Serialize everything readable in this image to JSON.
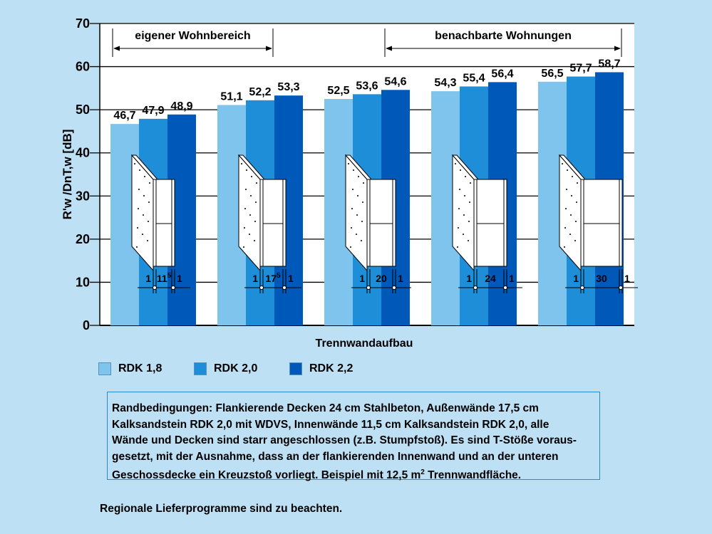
{
  "chart_data": {
    "type": "bar",
    "title": "",
    "xlabel": "Trennwandaufbau",
    "ylabel_main": "R'w /DnT,w",
    "ylabel_unit": "[dB]",
    "ylim": [
      0,
      70
    ],
    "yticks": [
      "0",
      "10",
      "20",
      "30",
      "40",
      "50",
      "60",
      "70"
    ],
    "grid": true,
    "categories": [
      "1 | 11,5 | 1",
      "1 | 17,5 | 1",
      "1 | 20 | 1",
      "1 | 24 | 1",
      "1 | 30 | 1"
    ],
    "wall_labels": [
      [
        "1",
        "11",
        "5",
        "1"
      ],
      [
        "1",
        "17",
        "5",
        "1"
      ],
      [
        "1",
        "20",
        "",
        "1"
      ],
      [
        "1",
        "24",
        "",
        "1"
      ],
      [
        "1",
        "30",
        "",
        "1"
      ]
    ],
    "series": [
      {
        "name": "RDK 1,8",
        "color": "#7fc4ec",
        "values": [
          46.7,
          51.1,
          52.5,
          54.3,
          56.5
        ],
        "labels": [
          "46,7",
          "51,1",
          "52,5",
          "54,3",
          "56,5"
        ]
      },
      {
        "name": "RDK 2,0",
        "color": "#1e8ed8",
        "values": [
          47.9,
          52.2,
          53.6,
          55.4,
          57.7
        ],
        "labels": [
          "47,9",
          "52,2",
          "53,6",
          "55,4",
          "57,7"
        ]
      },
      {
        "name": "RDK 2,2",
        "color": "#0058b8",
        "values": [
          48.9,
          53.3,
          54.6,
          56.4,
          58.7
        ],
        "labels": [
          "48,9",
          "53,3",
          "54,6",
          "56,4",
          "58,7"
        ]
      }
    ],
    "annotations": [
      "eigener Wohnbereich",
      "benachbarte Wohnungen"
    ],
    "legend": "bottom-left"
  },
  "note": {
    "line1": "Randbedingungen: Flankierende Decken 24 cm Stahlbeton, Außenwände 17,5 cm",
    "line2": "Kalksandstein RDK 2,0 mit WDVS, Innenwände 11,5 cm Kalksandstein RDK 2,0, alle",
    "line3": "Wände und Decken sind starr angeschlossen (z.B. Stumpfstoß). Es sind T-Stöße voraus-",
    "line4": "gesetzt, mit der Ausnahme, dass an der flankierenden Innenwand und an der unteren",
    "line5a": "Geschossdecke ein Kreuzstoß vorliegt. Beispiel mit 12,5 m",
    "line5sup": "2",
    "line5b": " Trennwandfläche."
  },
  "footer": "Regionale Lieferprogramme sind zu beachten."
}
